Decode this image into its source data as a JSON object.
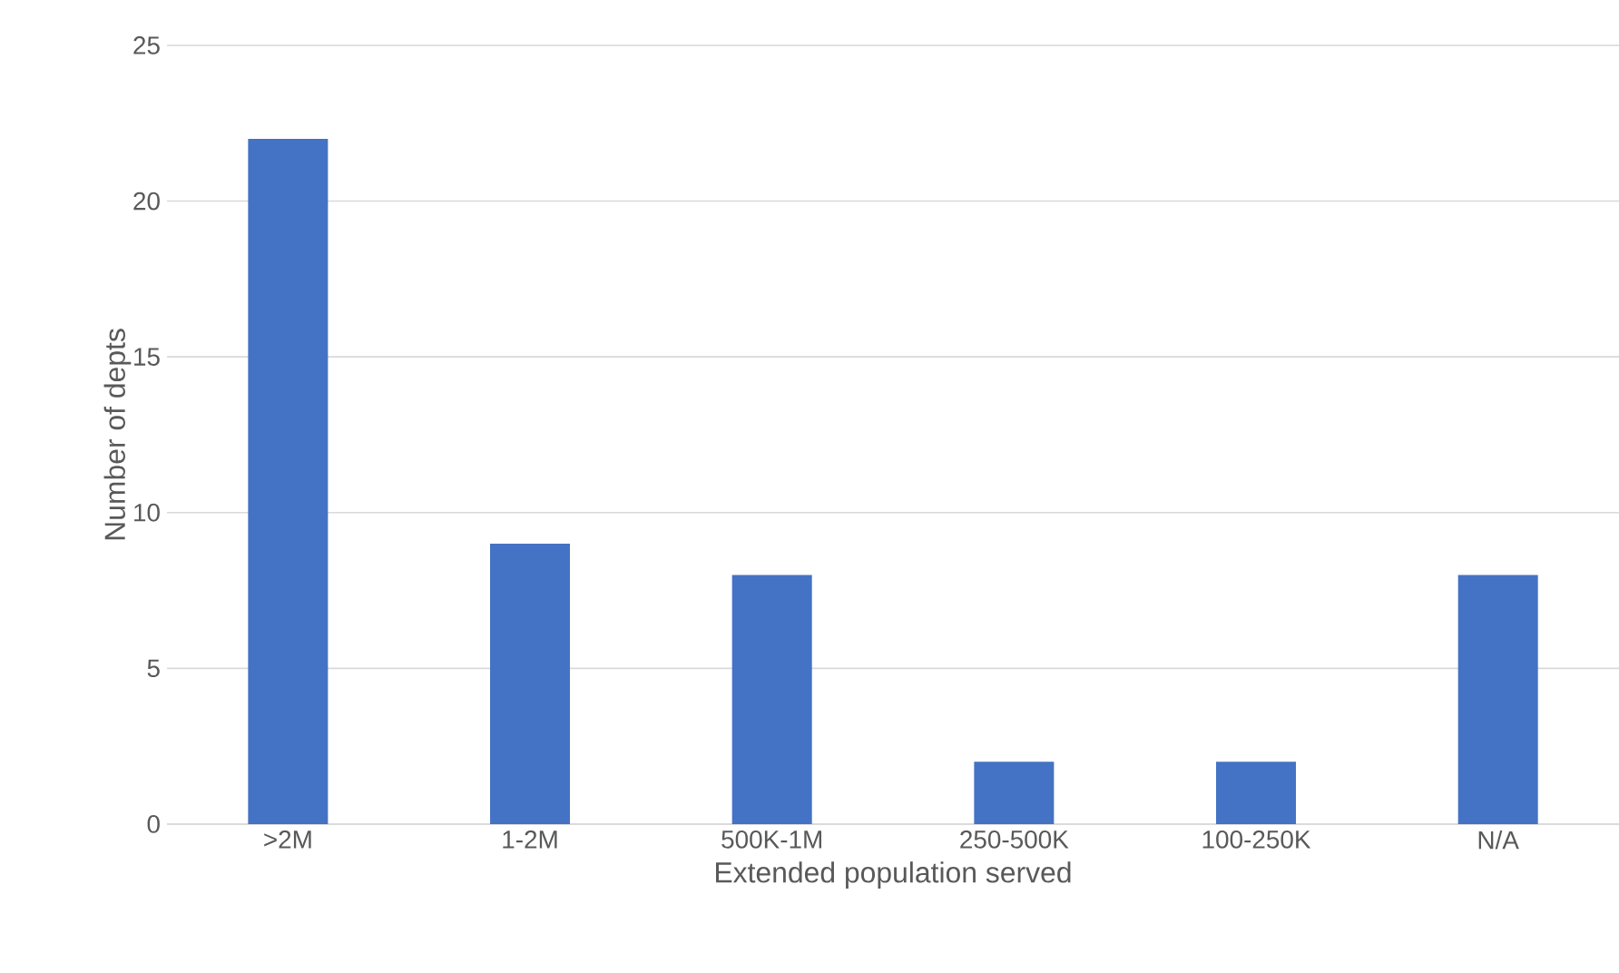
{
  "chart_data": {
    "type": "bar",
    "xlabel": "Extended population served",
    "ylabel": "Number of depts",
    "categories": [
      ">2M",
      "1-2M",
      "500K-1M",
      "250-500K",
      "100-250K",
      "N/A"
    ],
    "values": [
      22,
      9,
      8,
      2,
      2,
      8
    ],
    "color": "#4472c4",
    "ylim": [
      0,
      25
    ],
    "yticks": [
      0,
      5,
      10,
      15,
      20,
      25
    ],
    "grid": "y"
  }
}
